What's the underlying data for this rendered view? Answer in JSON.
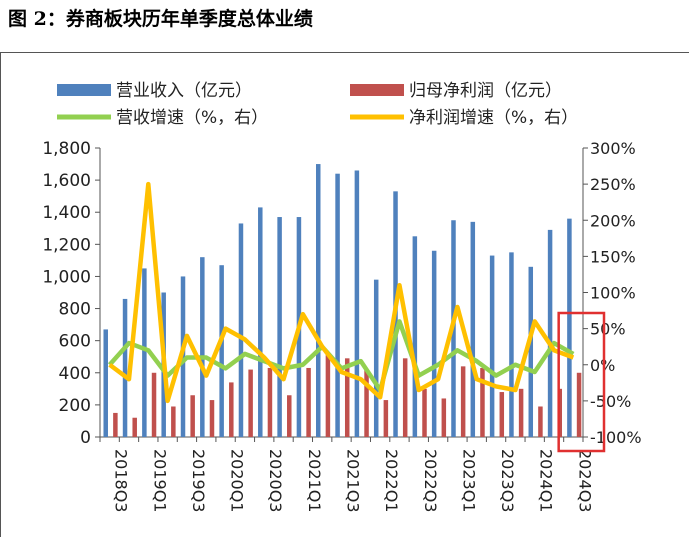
{
  "figure": {
    "title": "图 2：券商板块历年单季度总体业绩"
  },
  "colors": {
    "revenue": "#4f81bd",
    "net_profit": "#c0504d",
    "revenue_growth": "#92d050",
    "profit_growth": "#ffc000",
    "highlight": "#e03030",
    "axis": "#555555"
  },
  "chart_data": {
    "type": "bar",
    "categories": [
      "2018Q3",
      "2018Q4",
      "2019Q1",
      "2019Q2",
      "2019Q3",
      "2019Q4",
      "2020Q1",
      "2020Q2",
      "2020Q3",
      "2020Q4",
      "2021Q1",
      "2021Q2",
      "2021Q3",
      "2021Q4",
      "2022Q1",
      "2022Q2",
      "2022Q3",
      "2022Q4",
      "2023Q1",
      "2023Q2",
      "2023Q3",
      "2023Q4",
      "2024Q1",
      "2024Q2",
      "2024Q3"
    ],
    "x_tick_labels": [
      "2018Q3",
      "2019Q1",
      "2019Q3",
      "2020Q1",
      "2020Q3",
      "2021Q1",
      "2021Q3",
      "2022Q1",
      "2022Q3",
      "2023Q1",
      "2023Q3",
      "2024Q1",
      "2024Q3"
    ],
    "series": [
      {
        "name": "营业收入（亿元）",
        "type": "bar",
        "axis": "left",
        "color_key": "revenue",
        "values": [
          670,
          860,
          1050,
          900,
          1000,
          1120,
          1070,
          1330,
          1430,
          1370,
          1370,
          1700,
          1640,
          1660,
          980,
          1530,
          1250,
          1160,
          1350,
          1340,
          1130,
          1150,
          1060,
          1290,
          1360
        ]
      },
      {
        "name": "归母净利润（亿元）",
        "type": "bar",
        "axis": "left",
        "color_key": "net_profit",
        "values": [
          150,
          120,
          400,
          190,
          260,
          230,
          340,
          420,
          430,
          260,
          430,
          510,
          490,
          420,
          230,
          490,
          300,
          240,
          440,
          430,
          280,
          300,
          190,
          300,
          400
        ]
      },
      {
        "name": "营收增速（%，右）",
        "type": "line",
        "axis": "right",
        "color_key": "revenue_growth",
        "values": [
          0,
          30,
          20,
          -15,
          10,
          10,
          -5,
          15,
          5,
          -5,
          0,
          25,
          -5,
          5,
          -35,
          60,
          -15,
          0,
          20,
          5,
          -15,
          0,
          -10,
          30,
          15
        ]
      },
      {
        "name": "净利润增速（%，右）",
        "type": "line",
        "axis": "right",
        "color_key": "profit_growth",
        "values": [
          0,
          -20,
          250,
          -50,
          40,
          -15,
          50,
          35,
          10,
          -20,
          70,
          25,
          -10,
          -20,
          -45,
          110,
          -35,
          -20,
          80,
          -20,
          -30,
          -35,
          60,
          20,
          10
        ]
      }
    ],
    "y_left": {
      "ylim": [
        0,
        1800
      ],
      "ticks": [
        0,
        200,
        400,
        600,
        800,
        1000,
        1200,
        1400,
        1600,
        1800
      ],
      "tick_labels": [
        "0",
        "200",
        "400",
        "600",
        "800",
        "1,000",
        "1,200",
        "1,400",
        "1,600",
        "1,800"
      ]
    },
    "y_right": {
      "ylim": [
        -100,
        300
      ],
      "ticks": [
        -100,
        -50,
        0,
        50,
        100,
        150,
        200,
        250,
        300
      ],
      "tick_labels": [
        "-100%",
        "-50%",
        "0%",
        "50%",
        "100%",
        "150%",
        "200%",
        "250%",
        "300%"
      ]
    },
    "legend_position": "top",
    "grid": false,
    "highlight": {
      "description": "red box around 2024Q3 data",
      "categories": [
        "2024Q3"
      ]
    }
  }
}
